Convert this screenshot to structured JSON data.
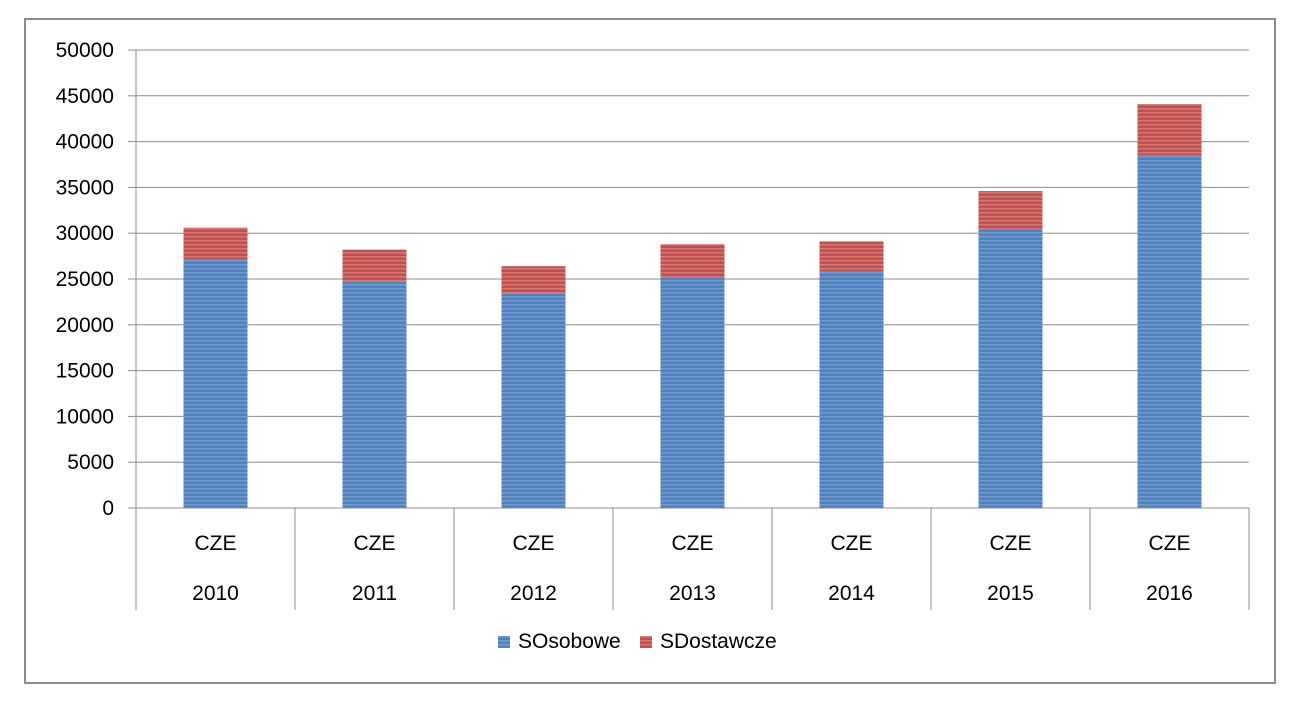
{
  "chart_data": {
    "type": "bar",
    "stacked": true,
    "title": "",
    "xlabel": "",
    "ylabel": "",
    "ylim": [
      0,
      50000
    ],
    "yticks": [
      0,
      5000,
      10000,
      15000,
      20000,
      25000,
      30000,
      35000,
      40000,
      45000,
      50000
    ],
    "grid": true,
    "legend_position": "bottom",
    "categories": [
      {
        "country": "CZE",
        "year": "2010"
      },
      {
        "country": "CZE",
        "year": "2011"
      },
      {
        "country": "CZE",
        "year": "2012"
      },
      {
        "country": "CZE",
        "year": "2013"
      },
      {
        "country": "CZE",
        "year": "2014"
      },
      {
        "country": "CZE",
        "year": "2015"
      },
      {
        "country": "CZE",
        "year": "2016"
      }
    ],
    "series": [
      {
        "name": "SOsobowe",
        "color": "#4f81bd",
        "values": [
          27100,
          24700,
          23400,
          25200,
          25800,
          30400,
          38500
        ]
      },
      {
        "name": "SDostawcze",
        "color": "#c0504d",
        "values": [
          3500,
          3500,
          3000,
          3600,
          3300,
          4200,
          5600
        ]
      }
    ]
  }
}
